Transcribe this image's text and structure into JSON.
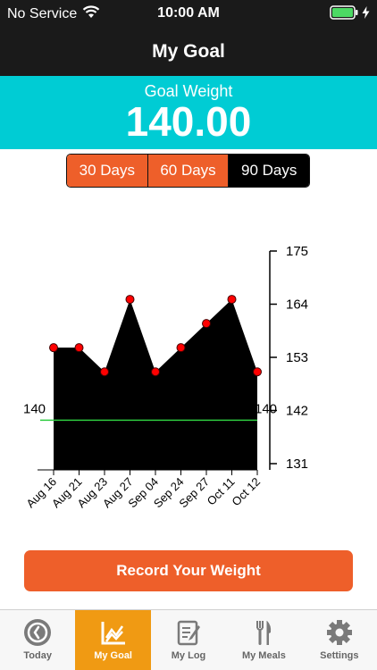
{
  "status_bar": {
    "carrier": "No Service",
    "time": "10:00 AM",
    "icons": [
      "wifi-icon",
      "battery-icon",
      "charging-icon"
    ],
    "battery_color": "#4cd964"
  },
  "nav": {
    "title": "My Goal"
  },
  "goal": {
    "label": "Goal Weight",
    "value": "140.00",
    "bg_color": "#00ccd4"
  },
  "range_selector": {
    "options": [
      "30 Days",
      "60 Days",
      "90 Days"
    ],
    "selected": "90 Days"
  },
  "chart_data": {
    "type": "area",
    "categories": [
      "Aug 16",
      "Aug 21",
      "Aug 23",
      "Aug 27",
      "Sep 04",
      "Sep 24",
      "Sep 27",
      "Oct 11",
      "Oct 12"
    ],
    "values": [
      155,
      155,
      150,
      165,
      150,
      155,
      160,
      165,
      150
    ],
    "goal_line": {
      "value": 140,
      "label_left": "140",
      "label_right": "140",
      "color": "#2ecc40"
    },
    "y_ticks": [
      175,
      164,
      153,
      142,
      131
    ],
    "ylim": [
      131,
      175
    ],
    "y_axis_side": "right",
    "area_color": "#000000",
    "marker_color": "#ff0000"
  },
  "actions": {
    "record_label": "Record Your Weight",
    "accent": "#ee5f2a"
  },
  "tab_bar": {
    "items": [
      {
        "name": "today",
        "label": "Today",
        "icon": "clock-icon"
      },
      {
        "name": "my-goal",
        "label": "My Goal",
        "icon": "chart-icon"
      },
      {
        "name": "my-log",
        "label": "My Log",
        "icon": "notepad-icon"
      },
      {
        "name": "my-meals",
        "label": "My Meals",
        "icon": "fork-knife-icon"
      },
      {
        "name": "settings",
        "label": "Settings",
        "icon": "gear-icon"
      }
    ],
    "active": "My Goal",
    "active_color": "#f09a13"
  }
}
